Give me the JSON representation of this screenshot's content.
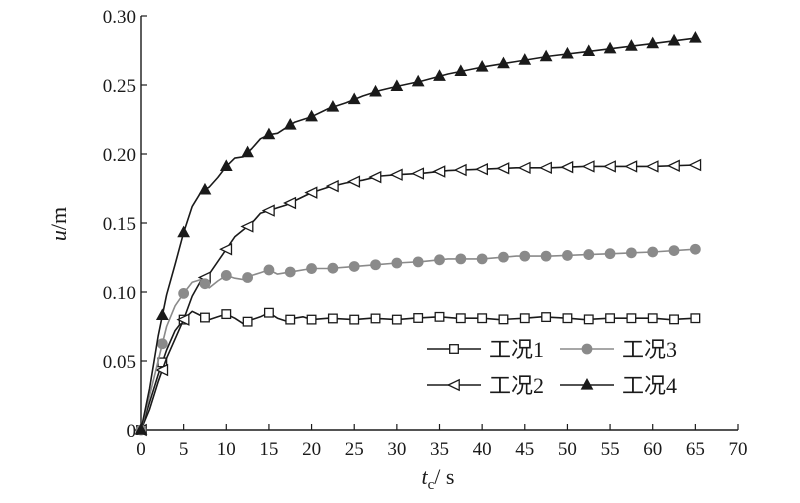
{
  "chart_data": {
    "type": "line",
    "xlabel": {
      "symbol": "t",
      "subscript": "c",
      "unit": "/ s"
    },
    "ylabel": {
      "symbol": "u",
      "unit": "/m"
    },
    "xlim": [
      0,
      70
    ],
    "ylim": [
      0,
      0.3
    ],
    "xticks": [
      0,
      5,
      10,
      15,
      20,
      25,
      30,
      35,
      40,
      45,
      50,
      55,
      60,
      65,
      70
    ],
    "yticks": [
      0,
      0.05,
      0.1,
      0.15,
      0.2,
      0.25,
      0.3
    ],
    "ytick_labels": [
      "0",
      "0.05",
      "0.10",
      "0.15",
      "0.20",
      "0.25",
      "0.30"
    ],
    "grid": false,
    "legend_position": "lower-right",
    "series": [
      {
        "name": "工况1",
        "marker": "open-square",
        "color": "#1a1a1a",
        "x": [
          0,
          1,
          2,
          3,
          4,
          5,
          6,
          7,
          8,
          9,
          10,
          11,
          12,
          13,
          14,
          15,
          16,
          17,
          18,
          19,
          20,
          22,
          25,
          27,
          30,
          32,
          35,
          37,
          40,
          42,
          45,
          47,
          50,
          52,
          55,
          57,
          60,
          62,
          65
        ],
        "y": [
          0,
          0.02,
          0.04,
          0.058,
          0.072,
          0.08,
          0.086,
          0.083,
          0.08,
          0.082,
          0.084,
          0.081,
          0.077,
          0.08,
          0.082,
          0.085,
          0.081,
          0.079,
          0.081,
          0.082,
          0.08,
          0.081,
          0.08,
          0.081,
          0.08,
          0.081,
          0.082,
          0.081,
          0.081,
          0.08,
          0.081,
          0.082,
          0.081,
          0.08,
          0.081,
          0.081,
          0.081,
          0.08,
          0.081
        ],
        "markers_x": [
          0,
          2.5,
          5,
          7.5,
          10,
          12.5,
          15,
          17.5,
          20,
          22.5,
          25,
          27.5,
          30,
          32.5,
          35,
          37.5,
          40,
          42.5,
          45,
          47.5,
          50,
          52.5,
          55,
          57.5,
          60,
          62.5,
          65
        ]
      },
      {
        "name": "工况2",
        "marker": "open-left-triangle",
        "color": "#1a1a1a",
        "x": [
          0,
          1,
          2,
          3,
          4,
          5,
          6,
          7,
          8,
          9,
          10,
          11,
          12,
          13,
          14,
          15,
          16,
          17,
          18,
          20,
          22,
          24,
          26,
          28,
          30,
          33,
          36,
          40,
          44,
          48,
          52,
          56,
          60,
          65
        ],
        "y": [
          0,
          0.015,
          0.035,
          0.052,
          0.066,
          0.08,
          0.097,
          0.108,
          0.113,
          0.122,
          0.131,
          0.14,
          0.145,
          0.15,
          0.157,
          0.159,
          0.161,
          0.163,
          0.166,
          0.172,
          0.176,
          0.179,
          0.181,
          0.184,
          0.185,
          0.186,
          0.188,
          0.189,
          0.19,
          0.19,
          0.191,
          0.191,
          0.191,
          0.192
        ],
        "markers_x": [
          0,
          2.5,
          5,
          7.5,
          10,
          12.5,
          15,
          17.5,
          20,
          22.5,
          25,
          27.5,
          30,
          32.5,
          35,
          37.5,
          40,
          42.5,
          45,
          47.5,
          50,
          52.5,
          55,
          57.5,
          60,
          62.5,
          65
        ]
      },
      {
        "name": "工况3",
        "marker": "filled-circle",
        "color": "#8a8a8a",
        "x": [
          0,
          1,
          2,
          3,
          4,
          5,
          6,
          7,
          8,
          9,
          10,
          11,
          12,
          13,
          14,
          15,
          16,
          18,
          20,
          22,
          24,
          26,
          28,
          30,
          33,
          36,
          40,
          44,
          48,
          52,
          56,
          60,
          65
        ],
        "y": [
          0,
          0.025,
          0.05,
          0.075,
          0.09,
          0.099,
          0.107,
          0.109,
          0.103,
          0.108,
          0.112,
          0.11,
          0.109,
          0.112,
          0.114,
          0.116,
          0.113,
          0.115,
          0.117,
          0.117,
          0.118,
          0.119,
          0.12,
          0.121,
          0.122,
          0.124,
          0.124,
          0.126,
          0.126,
          0.127,
          0.128,
          0.129,
          0.131
        ],
        "markers_x": [
          0,
          2.5,
          5,
          7.5,
          10,
          12.5,
          15,
          17.5,
          20,
          22.5,
          25,
          27.5,
          30,
          32.5,
          35,
          37.5,
          40,
          42.5,
          45,
          47.5,
          50,
          52.5,
          55,
          57.5,
          60,
          62.5,
          65
        ]
      },
      {
        "name": "工况4",
        "marker": "filled-triangle",
        "color": "#1a1a1a",
        "x": [
          0,
          1,
          2,
          3,
          4,
          5,
          6,
          7,
          8,
          9,
          10,
          11,
          12,
          13,
          14,
          15,
          16,
          17,
          18,
          19,
          20,
          22,
          24,
          26,
          28,
          30,
          33,
          36,
          40,
          44,
          48,
          52,
          56,
          60,
          65
        ],
        "y": [
          0,
          0.03,
          0.068,
          0.098,
          0.12,
          0.143,
          0.162,
          0.172,
          0.176,
          0.183,
          0.191,
          0.197,
          0.198,
          0.204,
          0.211,
          0.214,
          0.215,
          0.219,
          0.223,
          0.225,
          0.227,
          0.233,
          0.237,
          0.242,
          0.246,
          0.249,
          0.253,
          0.258,
          0.263,
          0.267,
          0.271,
          0.274,
          0.277,
          0.28,
          0.284
        ],
        "markers_x": [
          0,
          2.5,
          5,
          7.5,
          10,
          12.5,
          15,
          17.5,
          20,
          22.5,
          25,
          27.5,
          30,
          32.5,
          35,
          37.5,
          40,
          42.5,
          45,
          47.5,
          50,
          52.5,
          55,
          57.5,
          60,
          62.5,
          65
        ]
      }
    ],
    "legend_order": [
      0,
      2,
      1,
      3
    ]
  }
}
